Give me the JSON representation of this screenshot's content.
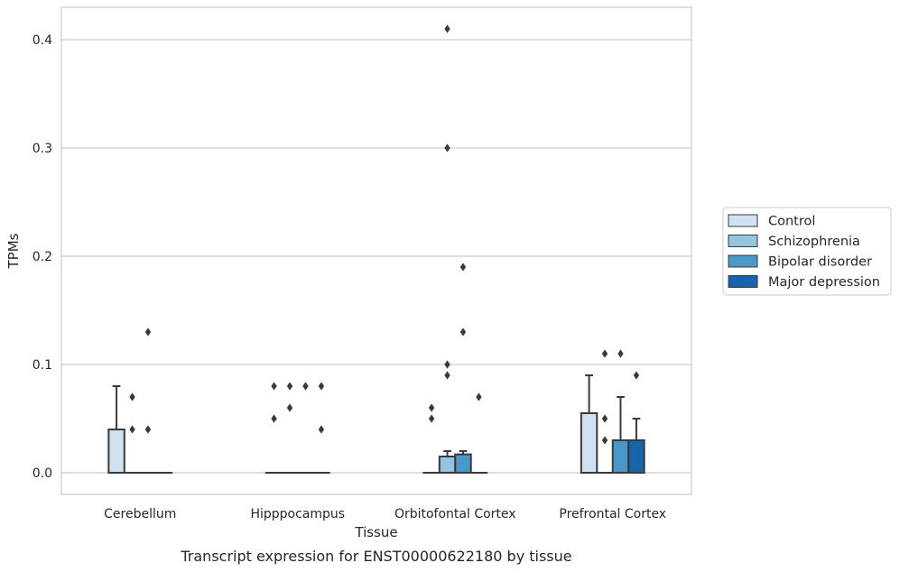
{
  "chart_data": {
    "type": "box",
    "caption": "Transcript expression for ENST00000622180 by tissue",
    "xlabel": "Tissue",
    "ylabel": "TPMs",
    "ylim": [
      -0.02,
      0.43
    ],
    "yticks": [
      0.0,
      0.1,
      0.2,
      0.3,
      0.4
    ],
    "ytick_labels": [
      "0.0",
      "0.1",
      "0.2",
      "0.3",
      "0.4"
    ],
    "grid": "horizontal",
    "legend_position": "right",
    "categories": [
      "Cerebellum",
      "Hipppocampus",
      "Orbitofontal Cortex",
      "Prefrontal Cortex"
    ],
    "series": [
      {
        "name": "Control",
        "color": "#d0e1f2",
        "boxes": [
          {
            "q1": 0,
            "median": 0,
            "q3": 0.04,
            "whisker_low": 0,
            "whisker_high": 0.08,
            "outliers": []
          },
          {
            "q1": 0,
            "median": 0,
            "q3": 0,
            "whisker_low": 0,
            "whisker_high": 0,
            "outliers": [
              0.05,
              0.08
            ]
          },
          {
            "q1": 0,
            "median": 0,
            "q3": 0,
            "whisker_low": 0,
            "whisker_high": 0,
            "outliers": [
              0.05,
              0.06
            ]
          },
          {
            "q1": 0,
            "median": 0,
            "q3": 0.055,
            "whisker_low": 0,
            "whisker_high": 0.09,
            "outliers": []
          }
        ]
      },
      {
        "name": "Schizophrenia",
        "color": "#94c4df",
        "boxes": [
          {
            "q1": 0,
            "median": 0,
            "q3": 0,
            "whisker_low": 0,
            "whisker_high": 0,
            "outliers": [
              0.04,
              0.07
            ]
          },
          {
            "q1": 0,
            "median": 0,
            "q3": 0,
            "whisker_low": 0,
            "whisker_high": 0,
            "outliers": [
              0.06,
              0.08
            ]
          },
          {
            "q1": 0,
            "median": 0,
            "q3": 0.015,
            "whisker_low": 0,
            "whisker_high": 0.02,
            "outliers": [
              0.09,
              0.1,
              0.3,
              0.41
            ]
          },
          {
            "q1": 0,
            "median": 0,
            "q3": 0,
            "whisker_low": 0,
            "whisker_high": 0,
            "outliers": [
              0.03,
              0.05,
              0.11
            ]
          }
        ]
      },
      {
        "name": "Bipolar disorder",
        "color": "#4a98c9",
        "boxes": [
          {
            "q1": 0,
            "median": 0,
            "q3": 0,
            "whisker_low": 0,
            "whisker_high": 0,
            "outliers": [
              0.04,
              0.13
            ]
          },
          {
            "q1": 0,
            "median": 0,
            "q3": 0,
            "whisker_low": 0,
            "whisker_high": 0,
            "outliers": [
              0.08
            ]
          },
          {
            "q1": 0,
            "median": 0,
            "q3": 0.017,
            "whisker_low": 0,
            "whisker_high": 0.02,
            "outliers": [
              0.13,
              0.19
            ]
          },
          {
            "q1": 0,
            "median": 0,
            "q3": 0.03,
            "whisker_low": 0,
            "whisker_high": 0.07,
            "outliers": [
              0.11
            ]
          }
        ]
      },
      {
        "name": "Major depression",
        "color": "#1764ab",
        "boxes": [
          {
            "q1": 0,
            "median": 0,
            "q3": 0,
            "whisker_low": 0,
            "whisker_high": 0,
            "outliers": []
          },
          {
            "q1": 0,
            "median": 0,
            "q3": 0,
            "whisker_low": 0,
            "whisker_high": 0,
            "outliers": [
              0.04,
              0.08
            ]
          },
          {
            "q1": 0,
            "median": 0,
            "q3": 0,
            "whisker_low": 0,
            "whisker_high": 0,
            "outliers": [
              0.07
            ]
          },
          {
            "q1": 0,
            "median": 0,
            "q3": 0.03,
            "whisker_low": 0,
            "whisker_high": 0.05,
            "outliers": [
              0.09
            ]
          }
        ]
      }
    ]
  }
}
